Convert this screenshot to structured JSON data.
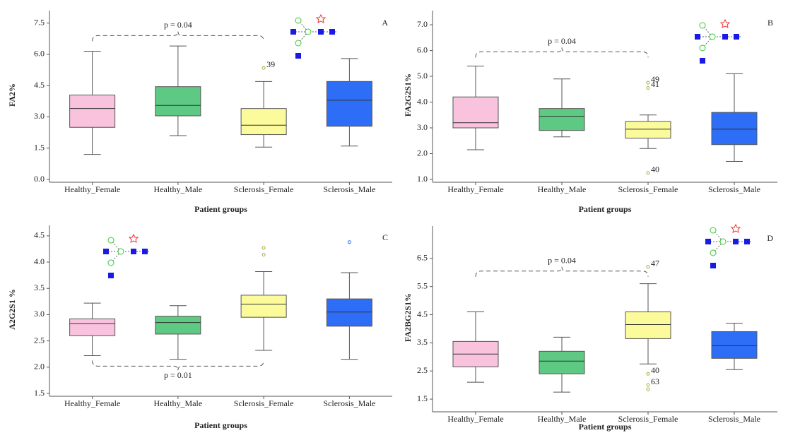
{
  "chart_data": [
    {
      "type": "box",
      "panel": "A",
      "ylabel": "FA2%",
      "xlabel": "Patient groups",
      "categories": [
        "Healthy_Female",
        "Healthy_Male",
        "Sclerosis_Female",
        "Sclerosis_Male"
      ],
      "colors": [
        "#f9c3de",
        "#5dc983",
        "#fbfb9c",
        "#2e6ef6"
      ],
      "whisker_low": [
        1.2,
        2.1,
        1.55,
        1.6
      ],
      "q1": [
        2.5,
        3.05,
        2.15,
        2.55
      ],
      "median": [
        3.4,
        3.55,
        2.6,
        3.8
      ],
      "q3": [
        4.05,
        4.45,
        3.4,
        4.7
      ],
      "whisker_high": [
        6.15,
        6.4,
        4.7,
        5.8
      ],
      "outliers": [
        [],
        [],
        [
          5.35
        ],
        []
      ],
      "outlier_labels": [
        [],
        [],
        [
          "39"
        ],
        []
      ],
      "ylim": [
        0,
        8.1
      ],
      "yticks": [
        {
          "value": 0,
          "label": "0.0"
        },
        1.5,
        {
          "value": 3,
          "label": "3.0"
        },
        4.5,
        {
          "value": 6,
          "label": "6.0"
        },
        7.5
      ],
      "annotation": {
        "text": "p = 0.04",
        "between": [
          0,
          2
        ],
        "y": 6.9,
        "position": "above"
      }
    },
    {
      "type": "box",
      "panel": "B",
      "ylabel": "FA2G2S1%",
      "xlabel": "Patient groups",
      "categories": [
        "Healthy_Female",
        "Healthy_Male",
        "Sclerosis_Female",
        "Sclerosis_Male"
      ],
      "colors": [
        "#f9c3de",
        "#5dc983",
        "#fbfb9c",
        "#2e6ef6"
      ],
      "whisker_low": [
        2.15,
        2.65,
        2.2,
        1.7
      ],
      "q1": [
        3.0,
        2.9,
        2.6,
        2.35
      ],
      "median": [
        3.2,
        3.45,
        2.95,
        2.95
      ],
      "q3": [
        4.2,
        3.75,
        3.25,
        3.6
      ],
      "whisker_high": [
        5.4,
        4.9,
        3.5,
        5.1
      ],
      "outliers": [
        [],
        [],
        [
          4.75,
          4.55,
          1.25
        ],
        []
      ],
      "outlier_labels": [
        [],
        [],
        [
          "49",
          "41",
          "40"
        ],
        []
      ],
      "ylim": [
        1.0,
        7.55
      ],
      "yticks": [
        {
          "value": 1,
          "label": "1.0"
        },
        {
          "value": 2,
          "label": "2.0"
        },
        {
          "value": 3,
          "label": "3.0"
        },
        {
          "value": 4,
          "label": "4.0"
        },
        {
          "value": 5,
          "label": "5.0"
        },
        {
          "value": 6,
          "label": "6.0"
        },
        {
          "value": 7,
          "label": "7.0"
        }
      ],
      "annotation": {
        "text": "p = 0.04",
        "between": [
          0,
          2
        ],
        "y": 5.95,
        "position": "above"
      }
    },
    {
      "type": "box",
      "panel": "C",
      "ylabel": "A2G2S1 %",
      "xlabel": "Patient groups",
      "categories": [
        "Healthy_Female",
        "Healthy_Male",
        "Sclerosis_Female",
        "Sclerosis_Male"
      ],
      "colors": [
        "#f9c3de",
        "#5dc983",
        "#fbfb9c",
        "#2e6ef6"
      ],
      "whisker_low": [
        2.22,
        2.15,
        2.32,
        2.15
      ],
      "q1": [
        2.6,
        2.63,
        2.95,
        2.78
      ],
      "median": [
        2.83,
        2.85,
        3.2,
        3.05
      ],
      "q3": [
        2.92,
        2.97,
        3.37,
        3.3
      ],
      "whisker_high": [
        3.22,
        3.17,
        3.82,
        3.8
      ],
      "outliers": [
        [],
        [],
        [
          4.27,
          4.14
        ],
        [
          4.38
        ]
      ],
      "outlier_labels": [
        [],
        [],
        [],
        []
      ],
      "ylim": [
        1.5,
        4.7
      ],
      "yticks": [
        1.5,
        {
          "value": 2,
          "label": "2.0"
        },
        2.5,
        {
          "value": 3,
          "label": "3.0"
        },
        3.5,
        {
          "value": 4,
          "label": "4.0"
        },
        4.5
      ],
      "annotation": {
        "text": "p = 0.01",
        "between": [
          0,
          2
        ],
        "y": 2.02,
        "position": "below"
      }
    },
    {
      "type": "box",
      "panel": "D",
      "ylabel": "FA2BG2S1%",
      "xlabel": "Patient groups",
      "categories": [
        "Healthy_Female",
        "Healthy_Male",
        "Sclerosis_Female",
        "Sclerosis_Male"
      ],
      "colors": [
        "#f9c3de",
        "#5dc983",
        "#fbfb9c",
        "#2e6ef6"
      ],
      "whisker_low": [
        2.1,
        1.75,
        2.75,
        2.55
      ],
      "q1": [
        2.65,
        2.4,
        3.65,
        2.95
      ],
      "median": [
        3.1,
        2.85,
        4.15,
        3.4
      ],
      "q3": [
        3.55,
        3.2,
        4.6,
        3.9
      ],
      "whisker_high": [
        4.6,
        3.7,
        5.6,
        4.2
      ],
      "outliers": [
        [],
        [],
        [
          6.2,
          2.4,
          2.0,
          1.85
        ],
        []
      ],
      "outlier_labels": [
        [],
        [],
        [
          "47",
          "40",
          "63",
          null
        ],
        []
      ],
      "ylim": [
        1.15,
        7.65
      ],
      "yticks": [
        1.5,
        2.5,
        3.5,
        4.5,
        5.5,
        6.5
      ],
      "annotation": {
        "text": "p = 0.04",
        "between": [
          0,
          2
        ],
        "y": 6.05,
        "position": "above"
      }
    }
  ]
}
